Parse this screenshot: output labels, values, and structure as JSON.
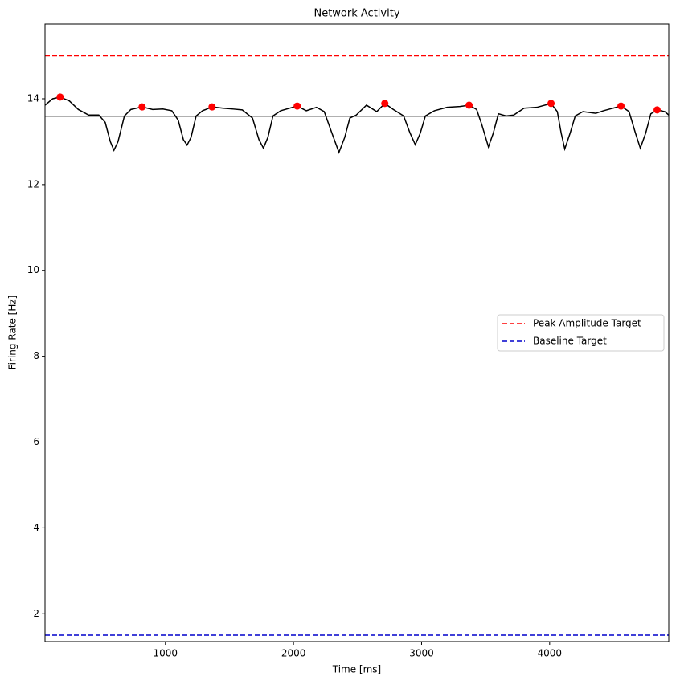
{
  "chart_data": {
    "type": "line",
    "title": "Network Activity",
    "x_label": "Time [ms]",
    "y_label": "Firing Rate [Hz]",
    "xlim": [
      60,
      4930
    ],
    "ylim": [
      1.35,
      15.74
    ],
    "xticks": [
      1000,
      2000,
      3000,
      4000
    ],
    "yticks": [
      2,
      4,
      6,
      8,
      10,
      12,
      14
    ],
    "legend_loc": "center right",
    "series": [
      {
        "color": "#000000",
        "x": [
          60,
          120,
          178,
          250,
          320,
          400,
          480,
          530,
          570,
          598,
          630,
          680,
          730,
          818,
          900,
          980,
          1050,
          1100,
          1140,
          1169,
          1200,
          1240,
          1290,
          1364,
          1450,
          1530,
          1600,
          1680,
          1730,
          1765,
          1800,
          1840,
          1900,
          2029,
          2100,
          2180,
          2240,
          2300,
          2355,
          2400,
          2440,
          2490,
          2570,
          2650,
          2713,
          2780,
          2860,
          2910,
          2951,
          2990,
          3030,
          3100,
          3200,
          3300,
          3371,
          3430,
          3470,
          3522,
          3560,
          3600,
          3660,
          3720,
          3800,
          3900,
          4011,
          4060,
          4090,
          4118,
          4160,
          4200,
          4260,
          4360,
          4420,
          4557,
          4620,
          4670,
          4708,
          4750,
          4790,
          4839,
          4900,
          4930
        ],
        "values": [
          13.85,
          14.0,
          14.04,
          13.95,
          13.75,
          13.62,
          13.62,
          13.45,
          13.0,
          12.8,
          13.0,
          13.6,
          13.75,
          13.81,
          13.75,
          13.76,
          13.72,
          13.5,
          13.05,
          12.92,
          13.1,
          13.6,
          13.72,
          13.81,
          13.78,
          13.76,
          13.74,
          13.55,
          13.05,
          12.85,
          13.1,
          13.6,
          13.72,
          13.83,
          13.72,
          13.8,
          13.7,
          13.2,
          12.75,
          13.1,
          13.55,
          13.62,
          13.85,
          13.7,
          13.89,
          13.75,
          13.6,
          13.2,
          12.93,
          13.2,
          13.6,
          13.72,
          13.8,
          13.82,
          13.85,
          13.75,
          13.4,
          12.88,
          13.2,
          13.65,
          13.6,
          13.62,
          13.78,
          13.8,
          13.89,
          13.7,
          13.2,
          12.83,
          13.2,
          13.6,
          13.7,
          13.66,
          13.72,
          13.83,
          13.7,
          13.2,
          12.85,
          13.2,
          13.65,
          13.74,
          13.7,
          13.62
        ]
      }
    ],
    "peaks": {
      "color": "#ff0000",
      "x": [
        178,
        818,
        1364,
        2029,
        2713,
        3371,
        4011,
        4557,
        4839
      ],
      "values": [
        14.04,
        13.81,
        13.81,
        13.83,
        13.89,
        13.85,
        13.89,
        13.83,
        13.74
      ]
    },
    "hlines": [
      {
        "name": "Peak Amplitude Target",
        "y": 15,
        "color": "#ff0000",
        "style": "dashed"
      },
      {
        "name": "Baseline Target",
        "y": 1.5,
        "color": "#0000cc",
        "style": "dashed"
      },
      {
        "y": 13.59,
        "color": "#808080",
        "style": "solid"
      }
    ]
  }
}
